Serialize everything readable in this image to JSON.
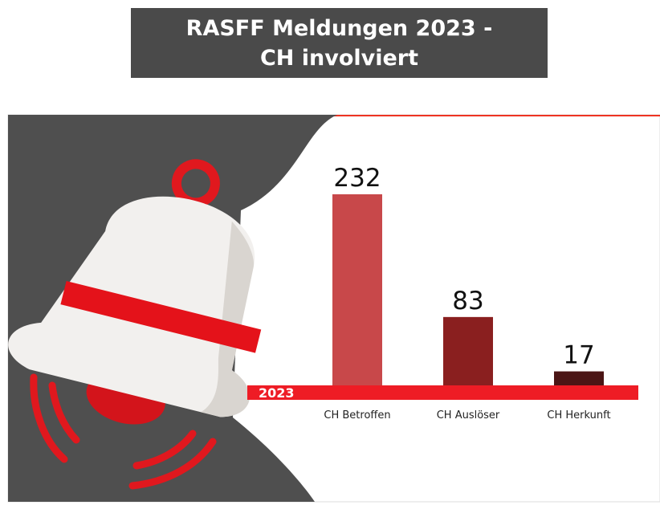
{
  "chart_data": {
    "type": "bar",
    "title": "RASFF Meldungen 2023 -\nCH involviert",
    "axis_label": "2023",
    "categories": [
      "CH Betroffen",
      "CH Auslöser",
      "CH Herkunft"
    ],
    "values": [
      232,
      83,
      17
    ],
    "colors": [
      "#c8484a",
      "#8a1f1f",
      "#4b1515"
    ]
  }
}
